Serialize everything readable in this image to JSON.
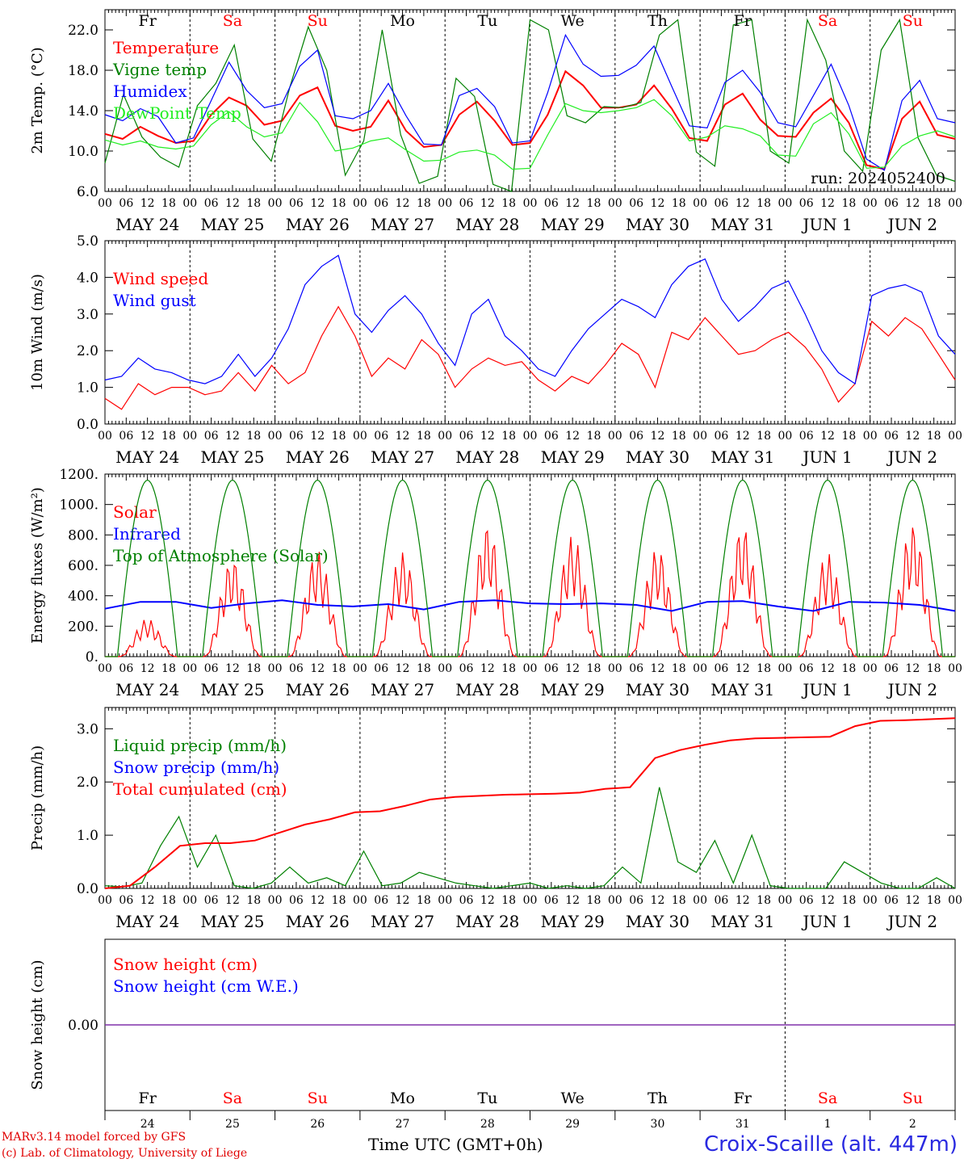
{
  "chart_data": [
    {
      "type": "line",
      "ylabel": "2m Temp. (°C)",
      "ylim": [
        6,
        24
      ],
      "yticks": [
        "6.0",
        "10.0",
        "14.0",
        "18.0",
        "22.0"
      ],
      "annotation": "run: 2024052400",
      "day_labels": [
        "Fr",
        "Sa",
        "Su",
        "Mo",
        "Tu",
        "We",
        "Th",
        "Fr",
        "Sa",
        "Su"
      ],
      "x_hour_ticks": [
        "00",
        "06",
        "12",
        "18"
      ],
      "x_date_labels": [
        "MAY 24",
        "MAY 25",
        "MAY 26",
        "MAY 27",
        "MAY 28",
        "MAY 29",
        "MAY 30",
        "MAY 31",
        "JUN  1",
        "JUN  2"
      ],
      "series": [
        {
          "name": "Temperature",
          "color": "#ff0000",
          "values": [
            11.7,
            11.2,
            12.4,
            11.5,
            10.8,
            11.0,
            13.6,
            15.3,
            14.5,
            12.6,
            13.0,
            15.5,
            16.3,
            12.5,
            12.0,
            12.4,
            15.0,
            12.0,
            10.4,
            10.6,
            13.6,
            14.9,
            13.0,
            10.6,
            10.8,
            13.6,
            17.9,
            16.5,
            14.3,
            14.3,
            14.6,
            16.5,
            14.2,
            11.3,
            11.0,
            14.6,
            15.7,
            13.1,
            11.5,
            11.4,
            13.8,
            15.2,
            12.8,
            8.6,
            8.2,
            13.2,
            14.9,
            11.6,
            11.2
          ]
        },
        {
          "name": "Vigne temp",
          "color": "#008000",
          "values": [
            8.8,
            15.6,
            11.4,
            9.4,
            8.4,
            14.5,
            16.7,
            20.5,
            11.2,
            9.0,
            16.3,
            22.3,
            18.0,
            7.6,
            11.0,
            22.0,
            11.6,
            6.8,
            7.5,
            17.2,
            15.4,
            6.7,
            6.0,
            23.0,
            22.0,
            13.5,
            12.8,
            14.4,
            14.3,
            14.8,
            21.5,
            23.0,
            9.9,
            8.5,
            22.5,
            23.0,
            10.0,
            8.8,
            23.0,
            19.0,
            10.0,
            8.0,
            20.0,
            23.0,
            11.3,
            7.6,
            7.0
          ]
        },
        {
          "name": "Humidex",
          "color": "#0000ff",
          "values": [
            13.6,
            13.0,
            14.2,
            13.4,
            10.8,
            11.3,
            15.0,
            18.8,
            16.0,
            14.3,
            14.7,
            18.4,
            20.0,
            13.5,
            13.2,
            14.0,
            16.7,
            13.5,
            10.7,
            10.6,
            15.5,
            16.2,
            14.4,
            10.8,
            11.0,
            15.8,
            21.5,
            18.6,
            17.4,
            17.5,
            18.5,
            20.4,
            16.4,
            12.5,
            12.3,
            16.8,
            18.0,
            15.8,
            12.8,
            12.4,
            15.5,
            18.6,
            14.5,
            9.2,
            8.1,
            15.0,
            17.0,
            13.2,
            12.8
          ]
        },
        {
          "name": "DewPoint Temp",
          "color": "#22ee22",
          "values": [
            11.1,
            10.6,
            11.0,
            10.4,
            10.2,
            10.5,
            12.6,
            13.9,
            12.4,
            11.4,
            11.8,
            14.8,
            12.9,
            10.0,
            10.3,
            11.0,
            11.3,
            10.1,
            9.0,
            9.1,
            9.9,
            10.1,
            9.6,
            8.2,
            8.3,
            11.6,
            14.7,
            14.0,
            13.8,
            14.0,
            14.3,
            15.1,
            13.5,
            11.0,
            11.4,
            12.5,
            12.2,
            11.5,
            9.6,
            9.5,
            12.7,
            13.8,
            11.7,
            8.3,
            8.4,
            10.5,
            11.5,
            12.0,
            11.4
          ]
        }
      ]
    },
    {
      "type": "line",
      "ylabel": "10m Wind (m/s)",
      "ylim": [
        0,
        5
      ],
      "yticks": [
        "0.0",
        "1.0",
        "2.0",
        "3.0",
        "4.0",
        "5.0"
      ],
      "day_labels": [],
      "x_hour_ticks": [
        "00",
        "06",
        "12",
        "18"
      ],
      "x_date_labels": [
        "MAY 24",
        "MAY 25",
        "MAY 26",
        "MAY 27",
        "MAY 28",
        "MAY 29",
        "MAY 30",
        "MAY 31",
        "JUN  1",
        "JUN  2"
      ],
      "series": [
        {
          "name": "Wind speed",
          "color": "#ff0000",
          "values": [
            0.7,
            0.4,
            1.1,
            0.8,
            1.0,
            1.0,
            0.8,
            0.9,
            1.4,
            0.9,
            1.6,
            1.1,
            1.4,
            2.4,
            3.2,
            2.4,
            1.3,
            1.8,
            1.5,
            2.3,
            1.9,
            1.0,
            1.5,
            1.8,
            1.6,
            1.7,
            1.2,
            0.9,
            1.3,
            1.1,
            1.6,
            2.2,
            1.9,
            1.0,
            2.5,
            2.3,
            2.9,
            2.4,
            1.9,
            2.0,
            2.3,
            2.5,
            2.1,
            1.5,
            0.6,
            1.1,
            2.8,
            2.4,
            2.9,
            2.6,
            1.9,
            1.2
          ]
        },
        {
          "name": "Wind gust",
          "color": "#0000ff",
          "values": [
            1.2,
            1.3,
            1.8,
            1.5,
            1.4,
            1.2,
            1.1,
            1.3,
            1.9,
            1.3,
            1.8,
            2.6,
            3.8,
            4.3,
            4.6,
            3.0,
            2.5,
            3.1,
            3.5,
            3.0,
            2.2,
            1.6,
            3.0,
            3.4,
            2.4,
            2.0,
            1.5,
            1.3,
            2.0,
            2.6,
            3.0,
            3.4,
            3.2,
            2.9,
            3.8,
            4.3,
            4.5,
            3.4,
            2.8,
            3.2,
            3.7,
            3.9,
            3.0,
            2.0,
            1.4,
            1.1,
            3.5,
            3.7,
            3.8,
            3.6,
            2.4,
            1.9
          ]
        }
      ]
    },
    {
      "type": "line",
      "ylabel": "Energy fluxes (W/m²)",
      "ylim": [
        0,
        1200
      ],
      "yticks": [
        "0.",
        "200.",
        "400.",
        "600.",
        "800.",
        "1000.",
        "1200."
      ],
      "day_labels": [],
      "x_hour_ticks": [
        "00",
        "06",
        "12",
        "18"
      ],
      "x_date_labels": [
        "MAY 24",
        "MAY 25",
        "MAY 26",
        "MAY 27",
        "MAY 28",
        "MAY 29",
        "MAY 30",
        "MAY 31",
        "JUN  1",
        "JUN  2"
      ],
      "series": [
        {
          "name": "Solar",
          "color": "#ff0000",
          "peaks": [
            250,
            650,
            700,
            690,
            880,
            800,
            720,
            870,
            680,
            880
          ]
        },
        {
          "name": "Infrared",
          "color": "#0000ff",
          "values": [
            315,
            360,
            360,
            320,
            350,
            370,
            340,
            330,
            345,
            310,
            360,
            370,
            350,
            345,
            350,
            340,
            300,
            360,
            365,
            330,
            300,
            360,
            355,
            340,
            300
          ]
        },
        {
          "name": "Top of Atmosphere (Solar)",
          "color": "#008000",
          "peak": 1160
        }
      ]
    },
    {
      "type": "line",
      "ylabel": "Precip (mm/h)",
      "ylim": [
        0,
        3.4
      ],
      "yticks": [
        "0.0",
        "1.0",
        "2.0",
        "3.0"
      ],
      "day_labels": [],
      "x_hour_ticks": [
        "00",
        "06",
        "12",
        "18"
      ],
      "x_date_labels": [
        "MAY 24",
        "MAY 25",
        "MAY 26",
        "MAY 27",
        "MAY 28",
        "MAY 29",
        "MAY 30",
        "MAY 31",
        "JUN  1",
        "JUN  2"
      ],
      "series": [
        {
          "name": "Liquid precip (mm/h)",
          "color": "#008000",
          "values": [
            0.05,
            0.03,
            0.1,
            0.8,
            1.35,
            0.4,
            1.0,
            0.05,
            0.0,
            0.1,
            0.4,
            0.1,
            0.2,
            0.05,
            0.7,
            0.05,
            0.1,
            0.3,
            0.2,
            0.1,
            0.05,
            0.0,
            0.05,
            0.1,
            0.0,
            0.05,
            0.0,
            0.05,
            0.4,
            0.1,
            1.9,
            0.5,
            0.3,
            0.9,
            0.1,
            1.0,
            0.05,
            0.0,
            0.0,
            0.0,
            0.5,
            0.3,
            0.1,
            0.0,
            0.0,
            0.2,
            0.0
          ]
        },
        {
          "name": "Snow precip (mm/h)",
          "color": "#0000ff",
          "values": []
        },
        {
          "name": "Total cumulated (cm)",
          "color": "#ff0000",
          "values": [
            0.0,
            0.05,
            0.4,
            0.8,
            0.85,
            0.85,
            0.9,
            1.05,
            1.2,
            1.3,
            1.43,
            1.45,
            1.55,
            1.67,
            1.72,
            1.74,
            1.76,
            1.77,
            1.78,
            1.8,
            1.87,
            1.9,
            2.45,
            2.6,
            2.7,
            2.78,
            2.82,
            2.83,
            2.84,
            2.85,
            3.05,
            3.15,
            3.16,
            3.18,
            3.2
          ]
        }
      ]
    },
    {
      "type": "line",
      "ylabel": "Snow height (cm)",
      "ylim": [
        -1,
        1
      ],
      "yticks": [
        "0.00"
      ],
      "day_labels": [
        "Fr",
        "Sa",
        "Su",
        "Mo",
        "Tu",
        "We",
        "Th",
        "Fr",
        "Sa",
        "Su"
      ],
      "x_day_numbers": [
        "24",
        "25",
        "26",
        "27",
        "28",
        "29",
        "30",
        "31",
        "1",
        "2"
      ],
      "xlabel": "Time UTC (GMT+0h)",
      "series": [
        {
          "name": "Snow height (cm)",
          "color": "#ff0000",
          "values": [
            0,
            0
          ]
        },
        {
          "name": "Snow height (cm W.E.)",
          "color": "#0000ff",
          "values": [
            0,
            0
          ]
        }
      ]
    }
  ],
  "footer": {
    "credit_line1": "MARv3.14 model forced by GFS",
    "credit_line2": "(c) Lab. of Climatology, University of Liege",
    "axis_title": "Time UTC (GMT+0h)",
    "station": "Croix-Scaille (alt. 447m)"
  },
  "colors": {
    "weekend": "#ff0000",
    "weekday": "#000000"
  }
}
